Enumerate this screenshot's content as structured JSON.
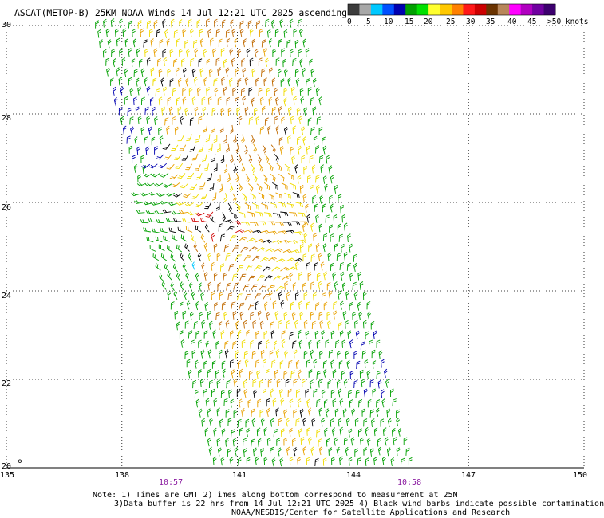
{
  "title": "ASCAT(METOP-B) 25KM NOAA Winds 14 Jul 12:21 UTC 2025 ascending",
  "map": {
    "lon_range": [
      135,
      150
    ],
    "lat_range": [
      20,
      30
    ],
    "lon_ticks": [
      "135",
      "138",
      "141",
      "144",
      "147",
      "150"
    ],
    "lat_ticks": [
      "20",
      "22",
      "24",
      "26",
      "28",
      "30"
    ],
    "grid": "dotted",
    "swath": {
      "top_lon": [
        137.3,
        142.6
      ],
      "bottom_lon": [
        140.4,
        145.6
      ]
    },
    "storm_center": {
      "lon": 140.5,
      "lat": 25.6
    }
  },
  "legend": {
    "unit_label": ">50 knots",
    "labels": [
      "0",
      "5",
      "10",
      "15",
      "20",
      "25",
      "30",
      "35",
      "40",
      "45"
    ],
    "colors": [
      "#3c3c3c",
      "#a8a8a8",
      "#00c8ff",
      "#0050ff",
      "#0000b0",
      "#00a000",
      "#00e000",
      "#ffff30",
      "#ffc800",
      "#ff8000",
      "#ff1818",
      "#cc0000",
      "#6a3300",
      "#b8865a",
      "#ff00ff",
      "#b000c0",
      "#7000a0",
      "#3c006e"
    ]
  },
  "times": [
    {
      "label": "10:57"
    },
    {
      "label": "10:58"
    }
  ],
  "notes": [
    "Note: 1) Times are GMT 2)Times along bottom correspond to measurement at 25N",
    "3)Data buffer is 22 hrs from 14 Jul 12:21 UTC 2025 4) Black wind barbs indicate possible contamination",
    "NOAA/NESDIS/Center for Satellite Applications and Research"
  ],
  "colors": {
    "time_label": "#8a1aa0",
    "barb_light": "#00c8ff",
    "barb_blue": "#0000b0",
    "barb_green": "#00a000",
    "barb_yellow": "#f0dc00",
    "barb_orange": "#e8a000",
    "barb_brown": "#c06a00",
    "barb_red": "#d00000",
    "barb_contaminated": "#000000"
  }
}
